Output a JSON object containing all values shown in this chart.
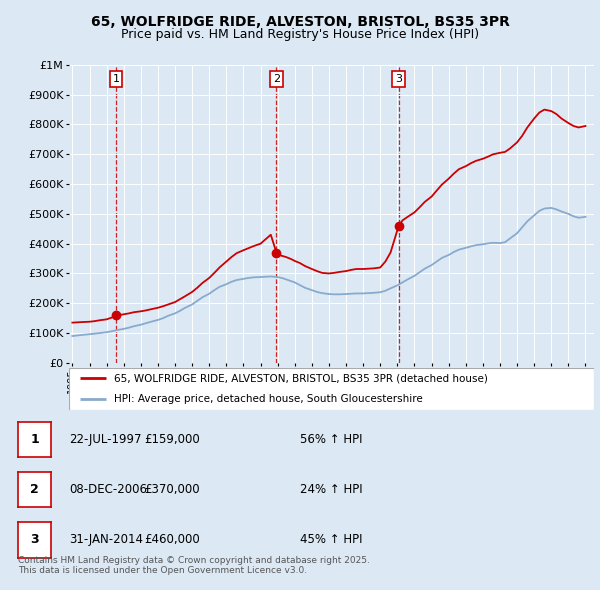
{
  "title_line1": "65, WOLFRIDGE RIDE, ALVESTON, BRISTOL, BS35 3PR",
  "title_line2": "Price paid vs. HM Land Registry's House Price Index (HPI)",
  "bg_color": "#dce9f5",
  "plot_bg_color": "#dce9f5",
  "red_line_color": "#cc0000",
  "blue_line_color": "#88aacc",
  "grid_color": "#ffffff",
  "vline_color": "#cc0000",
  "ylabel_ticks": [
    "£0",
    "£100K",
    "£200K",
    "£300K",
    "£400K",
    "£500K",
    "£600K",
    "£700K",
    "£800K",
    "£900K",
    "£1M"
  ],
  "ytick_values": [
    0,
    100000,
    200000,
    300000,
    400000,
    500000,
    600000,
    700000,
    800000,
    900000,
    1000000
  ],
  "xmin": 1994.8,
  "xmax": 2025.5,
  "ymin": 0,
  "ymax": 1000000,
  "sale_dates": [
    1997.55,
    2006.93,
    2014.08
  ],
  "sale_prices": [
    159000,
    370000,
    460000
  ],
  "sale_labels": [
    "1",
    "2",
    "3"
  ],
  "legend_red": "65, WOLFRIDGE RIDE, ALVESTON, BRISTOL, BS35 3PR (detached house)",
  "legend_blue": "HPI: Average price, detached house, South Gloucestershire",
  "table_rows": [
    [
      "1",
      "22-JUL-1997",
      "£159,000",
      "56% ↑ HPI"
    ],
    [
      "2",
      "08-DEC-2006",
      "£370,000",
      "24% ↑ HPI"
    ],
    [
      "3",
      "31-JAN-2014",
      "£460,000",
      "45% ↑ HPI"
    ]
  ],
  "footnote_line1": "Contains HM Land Registry data © Crown copyright and database right 2025.",
  "footnote_line2": "This data is licensed under the Open Government Licence v3.0.",
  "red_x": [
    1995.0,
    1995.3,
    1995.6,
    1996.0,
    1996.3,
    1996.6,
    1997.0,
    1997.3,
    1997.55,
    1997.8,
    1998.0,
    1998.3,
    1998.6,
    1999.0,
    1999.3,
    1999.6,
    2000.0,
    2000.3,
    2000.6,
    2001.0,
    2001.3,
    2001.6,
    2002.0,
    2002.3,
    2002.6,
    2003.0,
    2003.3,
    2003.6,
    2004.0,
    2004.3,
    2004.6,
    2005.0,
    2005.3,
    2005.6,
    2006.0,
    2006.3,
    2006.6,
    2006.93,
    2007.2,
    2007.5,
    2007.8,
    2008.0,
    2008.3,
    2008.6,
    2009.0,
    2009.3,
    2009.6,
    2010.0,
    2010.3,
    2010.6,
    2011.0,
    2011.3,
    2011.6,
    2012.0,
    2012.3,
    2012.6,
    2013.0,
    2013.3,
    2013.6,
    2014.08,
    2014.3,
    2014.6,
    2015.0,
    2015.3,
    2015.6,
    2016.0,
    2016.3,
    2016.6,
    2017.0,
    2017.3,
    2017.6,
    2018.0,
    2018.3,
    2018.6,
    2019.0,
    2019.3,
    2019.6,
    2020.0,
    2020.3,
    2020.6,
    2021.0,
    2021.3,
    2021.6,
    2022.0,
    2022.3,
    2022.6,
    2023.0,
    2023.3,
    2023.6,
    2024.0,
    2024.3,
    2024.6,
    2025.0
  ],
  "red_y": [
    135000,
    136000,
    137000,
    138000,
    140000,
    143000,
    146000,
    152000,
    159000,
    161000,
    163000,
    166000,
    170000,
    173000,
    176000,
    180000,
    185000,
    190000,
    196000,
    204000,
    214000,
    224000,
    238000,
    252000,
    268000,
    285000,
    302000,
    320000,
    340000,
    355000,
    368000,
    378000,
    385000,
    392000,
    400000,
    415000,
    430000,
    370000,
    360000,
    355000,
    348000,
    342000,
    335000,
    325000,
    315000,
    308000,
    302000,
    300000,
    302000,
    305000,
    308000,
    312000,
    315000,
    315000,
    316000,
    317000,
    320000,
    340000,
    370000,
    460000,
    478000,
    490000,
    505000,
    522000,
    540000,
    558000,
    578000,
    598000,
    618000,
    635000,
    650000,
    660000,
    670000,
    678000,
    685000,
    692000,
    700000,
    705000,
    708000,
    720000,
    740000,
    762000,
    790000,
    820000,
    840000,
    850000,
    845000,
    835000,
    820000,
    805000,
    795000,
    790000,
    795000
  ],
  "blue_x": [
    1995.0,
    1995.3,
    1995.6,
    1996.0,
    1996.3,
    1996.6,
    1997.0,
    1997.3,
    1997.6,
    1998.0,
    1998.3,
    1998.6,
    1999.0,
    1999.3,
    1999.6,
    2000.0,
    2000.3,
    2000.6,
    2001.0,
    2001.3,
    2001.6,
    2002.0,
    2002.3,
    2002.6,
    2003.0,
    2003.3,
    2003.6,
    2004.0,
    2004.3,
    2004.6,
    2005.0,
    2005.3,
    2005.6,
    2006.0,
    2006.3,
    2006.6,
    2007.0,
    2007.3,
    2007.6,
    2008.0,
    2008.3,
    2008.6,
    2009.0,
    2009.3,
    2009.6,
    2010.0,
    2010.3,
    2010.6,
    2011.0,
    2011.3,
    2011.6,
    2012.0,
    2012.3,
    2012.6,
    2013.0,
    2013.3,
    2013.6,
    2014.0,
    2014.3,
    2014.6,
    2015.0,
    2015.3,
    2015.6,
    2016.0,
    2016.3,
    2016.6,
    2017.0,
    2017.3,
    2017.6,
    2018.0,
    2018.3,
    2018.6,
    2019.0,
    2019.3,
    2019.6,
    2020.0,
    2020.3,
    2020.6,
    2021.0,
    2021.3,
    2021.6,
    2022.0,
    2022.3,
    2022.6,
    2023.0,
    2023.3,
    2023.6,
    2024.0,
    2024.3,
    2024.6,
    2025.0
  ],
  "blue_y": [
    90000,
    92000,
    94000,
    96000,
    98000,
    100000,
    103000,
    106000,
    110000,
    114000,
    118000,
    123000,
    128000,
    133000,
    138000,
    144000,
    150000,
    158000,
    166000,
    175000,
    185000,
    196000,
    208000,
    220000,
    232000,
    244000,
    255000,
    264000,
    272000,
    278000,
    282000,
    285000,
    287000,
    288000,
    289000,
    290000,
    288000,
    284000,
    278000,
    270000,
    261000,
    252000,
    244000,
    238000,
    234000,
    231000,
    230000,
    230000,
    231000,
    232000,
    233000,
    233000,
    234000,
    235000,
    237000,
    242000,
    250000,
    260000,
    270000,
    280000,
    292000,
    304000,
    316000,
    328000,
    340000,
    352000,
    362000,
    372000,
    380000,
    386000,
    391000,
    395000,
    398000,
    401000,
    403000,
    402000,
    405000,
    418000,
    435000,
    455000,
    475000,
    495000,
    510000,
    518000,
    520000,
    515000,
    508000,
    500000,
    492000,
    487000,
    490000
  ]
}
